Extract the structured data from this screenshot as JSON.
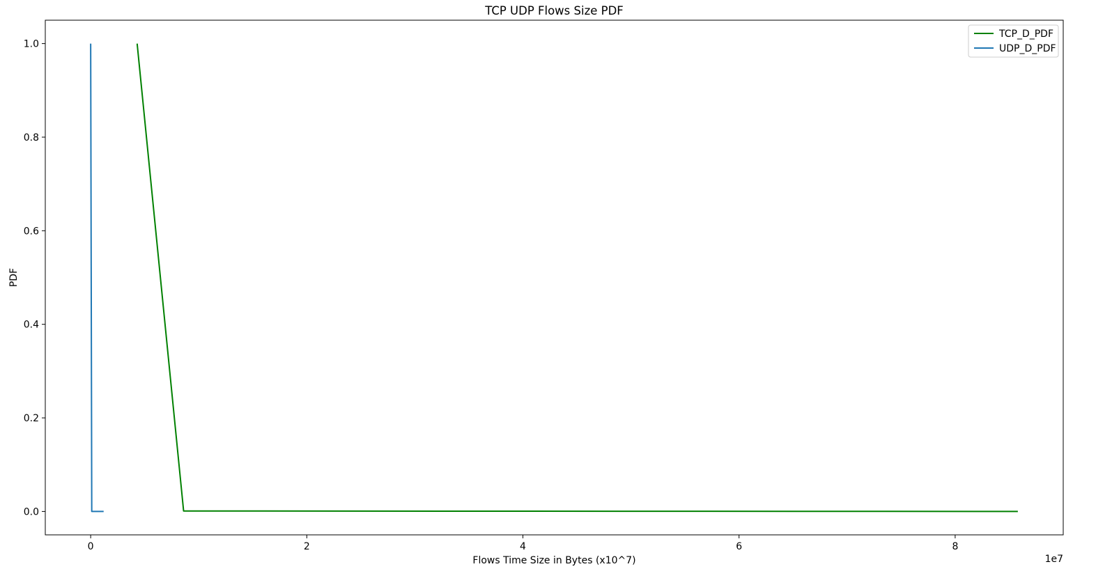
{
  "chart_data": {
    "type": "line",
    "title": "TCP UDP Flows Size PDF",
    "xlabel": "Flows Time Size in Bytes (x10^7)",
    "ylabel": "PDF",
    "x_offset_text": "1e7",
    "x_scale": 10000000,
    "xlim": [
      -4200000,
      90000000
    ],
    "ylim": [
      -0.05,
      1.05
    ],
    "x_ticks": [
      0,
      20000000,
      40000000,
      60000000,
      80000000
    ],
    "x_tick_labels": [
      "0",
      "2",
      "4",
      "6",
      "8"
    ],
    "y_ticks": [
      0.0,
      0.2,
      0.4,
      0.6,
      0.8,
      1.0
    ],
    "y_tick_labels": [
      "0.0",
      "0.2",
      "0.4",
      "0.6",
      "0.8",
      "1.0"
    ],
    "grid": false,
    "legend_position": "top-right",
    "series": [
      {
        "name": "TCP_D_PDF",
        "color": "#008000",
        "x": [
          4300000,
          8600000,
          85800000
        ],
        "y": [
          1.0,
          0.001,
          0.0
        ]
      },
      {
        "name": "UDP_D_PDF",
        "color": "#1f77b4",
        "x": [
          0,
          100000,
          1200000
        ],
        "y": [
          1.0,
          0.0,
          0.0
        ]
      }
    ]
  }
}
